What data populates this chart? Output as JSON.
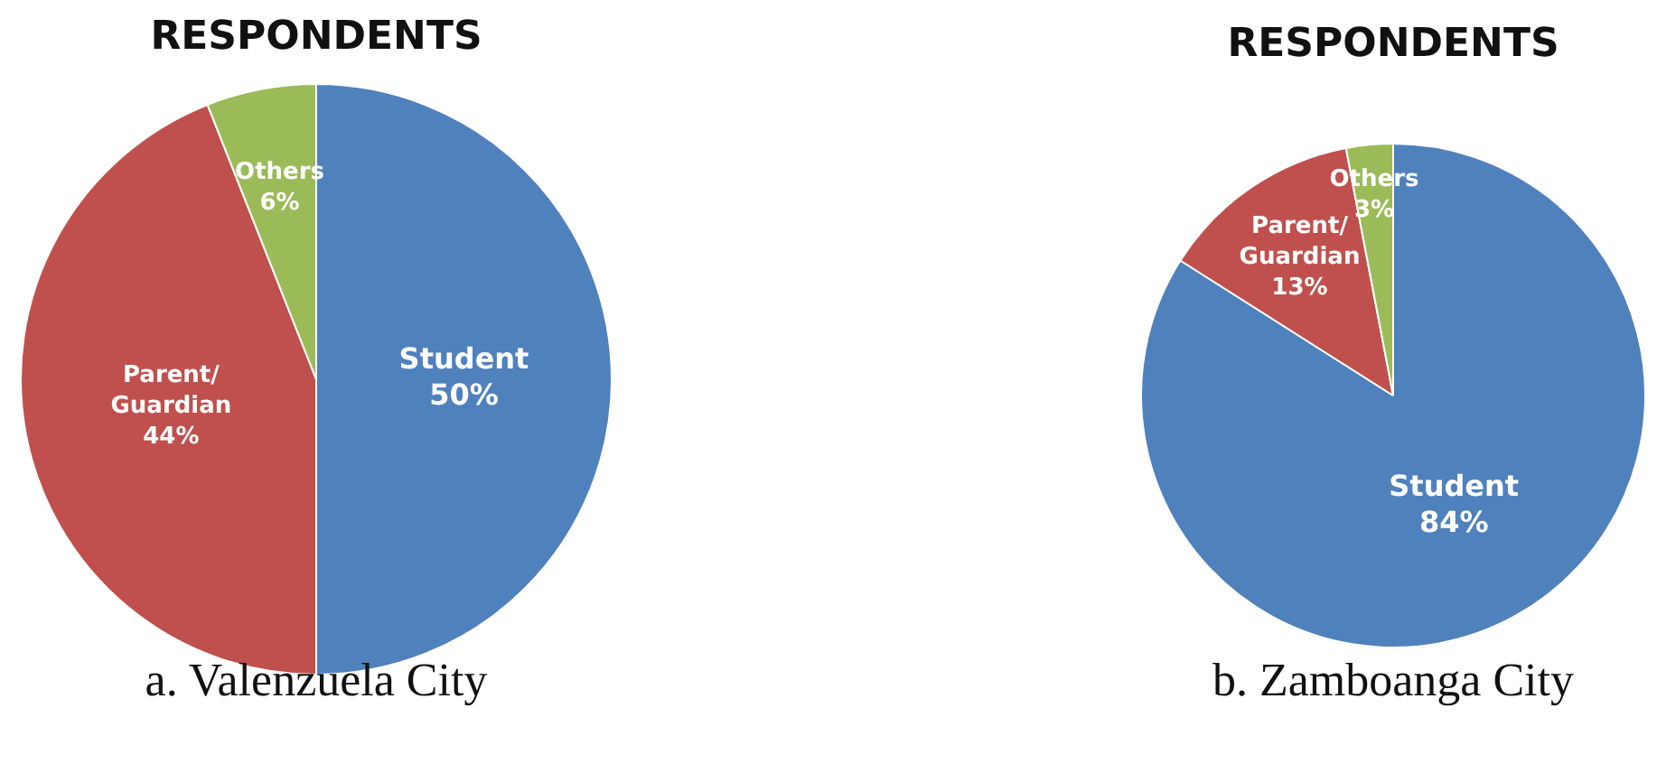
{
  "chart_data": [
    {
      "type": "pie",
      "title": "RESPONDENTS",
      "categories": [
        "Student",
        "Parent/Guardian",
        "Others"
      ],
      "values": [
        50,
        44,
        6
      ],
      "colors": [
        "#4f81bd",
        "#c0504d",
        "#9bbb59"
      ],
      "value_labels": [
        "50%",
        "44%",
        "6%"
      ],
      "annotations": [
        "a. Valenzuela City"
      ],
      "legend": false
    },
    {
      "type": "pie",
      "title": "RESPONDENTS",
      "categories": [
        "Student",
        "Parent/Guardian",
        "Others"
      ],
      "values": [
        84,
        13,
        3
      ],
      "colors": [
        "#4f81bd",
        "#c0504d",
        "#9bbb59"
      ],
      "value_labels": [
        "84%",
        "13%",
        "3%"
      ],
      "annotations": [
        "b. Zamboanga City"
      ],
      "legend": false
    }
  ]
}
